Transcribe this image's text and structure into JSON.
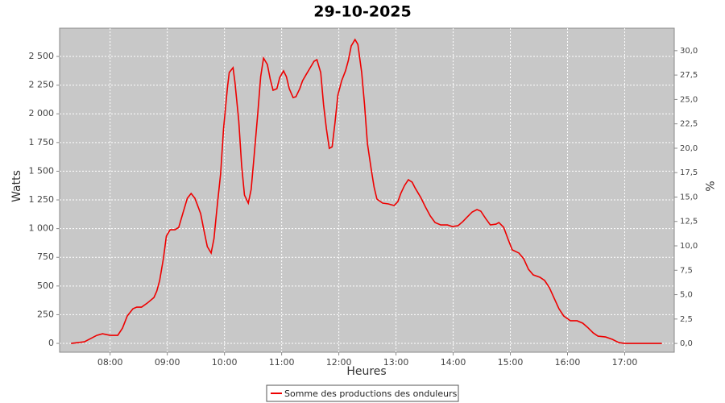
{
  "chart_data": {
    "type": "line",
    "title": "29-10-2025",
    "x_label": "Heures",
    "y_label": "Watts",
    "y2_label": "%",
    "x": [
      439,
      453,
      466,
      472,
      480,
      488,
      493,
      498,
      504,
      508,
      513,
      519,
      526,
      529,
      532,
      536,
      539,
      543,
      548,
      552,
      556,
      561,
      565,
      569,
      575,
      578,
      582,
      586,
      589,
      592,
      596,
      599,
      603,
      605,
      609,
      611,
      615,
      618,
      621,
      625,
      628,
      631,
      635,
      638,
      641,
      645,
      648,
      651,
      655,
      658,
      662,
      665,
      668,
      672,
      675,
      679,
      682,
      686,
      690,
      694,
      697,
      701,
      704,
      707,
      710,
      713,
      716,
      719,
      723,
      727,
      730,
      733,
      737,
      740,
      744,
      747,
      750,
      754,
      757,
      760,
      766,
      772,
      778,
      782,
      785,
      789,
      793,
      797,
      800,
      806,
      811,
      816,
      821,
      827,
      834,
      839,
      845,
      850,
      855,
      860,
      865,
      869,
      874,
      879,
      885,
      888,
      893,
      898,
      902,
      909,
      914,
      919,
      924,
      931,
      936,
      941,
      946,
      951,
      956,
      963,
      970,
      976,
      981,
      987,
      992,
      1000,
      1007,
      1014,
      1020,
      1059
    ],
    "series": [
      {
        "name": "Somme des productions des onduleurs",
        "color": "#ee0000",
        "values": [
          0,
          14,
          70,
          84,
          70,
          70,
          133,
          239,
          302,
          316,
          316,
          351,
          400,
          456,
          548,
          744,
          934,
          990,
          990,
          1011,
          1124,
          1264,
          1306,
          1264,
          1131,
          1004,
          843,
          787,
          913,
          1166,
          1482,
          1868,
          2219,
          2360,
          2402,
          2275,
          1938,
          1552,
          1292,
          1222,
          1341,
          1622,
          2008,
          2324,
          2486,
          2430,
          2303,
          2205,
          2219,
          2317,
          2374,
          2324,
          2219,
          2142,
          2149,
          2219,
          2289,
          2346,
          2402,
          2458,
          2472,
          2360,
          2079,
          1868,
          1699,
          1713,
          1924,
          2163,
          2289,
          2374,
          2465,
          2591,
          2647,
          2605,
          2360,
          2079,
          1742,
          1517,
          1362,
          1257,
          1222,
          1215,
          1201,
          1236,
          1306,
          1376,
          1426,
          1404,
          1355,
          1271,
          1187,
          1110,
          1053,
          1032,
          1032,
          1018,
          1025,
          1060,
          1103,
          1145,
          1166,
          1152,
          1089,
          1032,
          1039,
          1053,
          1011,
          899,
          815,
          787,
          737,
          646,
          597,
          576,
          548,
          485,
          393,
          302,
          239,
          197,
          197,
          176,
          140,
          91,
          63,
          56,
          35,
          7,
          0,
          0
        ]
      }
    ],
    "xlim": [
      427,
      1072
    ],
    "xticks": [
      {
        "value": 480,
        "label": "08:00"
      },
      {
        "value": 540,
        "label": "09:00"
      },
      {
        "value": 600,
        "label": "10:00"
      },
      {
        "value": 660,
        "label": "11:00"
      },
      {
        "value": 720,
        "label": "12:00"
      },
      {
        "value": 780,
        "label": "13:00"
      },
      {
        "value": 840,
        "label": "14:00"
      },
      {
        "value": 900,
        "label": "15:00"
      },
      {
        "value": 960,
        "label": "16:00"
      },
      {
        "value": 1020,
        "label": "17:00"
      }
    ],
    "ylim": [
      -77,
      2746
    ],
    "yticks": [
      0,
      250,
      500,
      750,
      {
        "value": 1000,
        "label": "1 000"
      },
      {
        "value": 1250,
        "label": "1 250"
      },
      {
        "value": 1500,
        "label": "1 500"
      },
      {
        "value": 1750,
        "label": "1 750"
      },
      {
        "value": 2000,
        "label": "2 000"
      },
      {
        "value": 2250,
        "label": "2 250"
      },
      {
        "value": 2500,
        "label": "2 500"
      }
    ],
    "y2lim": [
      -0.9,
      32.3
    ],
    "y2ticks": [
      {
        "value": 0,
        "label": "0,0"
      },
      {
        "value": 2.5,
        "label": "2,5"
      },
      {
        "value": 5,
        "label": "5,0"
      },
      {
        "value": 7.5,
        "label": "7,5"
      },
      {
        "value": 10,
        "label": "10,0"
      },
      {
        "value": 12.5,
        "label": "12,5"
      },
      {
        "value": 15,
        "label": "15,0"
      },
      {
        "value": 17.5,
        "label": "17,5"
      },
      {
        "value": 20,
        "label": "20,0"
      },
      {
        "value": 22.5,
        "label": "22,5"
      },
      {
        "value": 25,
        "label": "25,0"
      },
      {
        "value": 27.5,
        "label": "27,5"
      },
      {
        "value": 30,
        "label": "30,0"
      }
    ],
    "grid": true,
    "plot_background": "#c8c8c8",
    "legend": "bottom"
  }
}
